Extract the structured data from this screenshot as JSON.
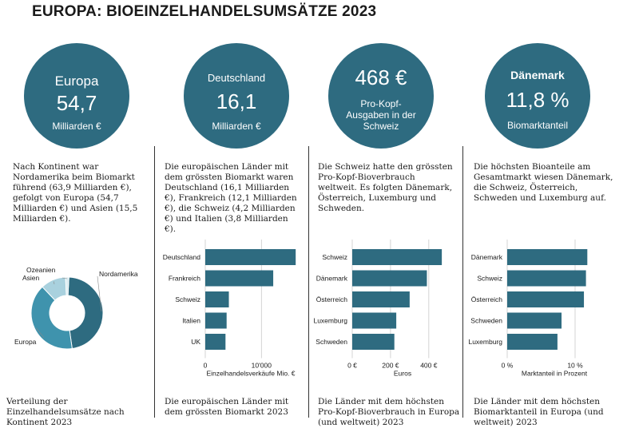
{
  "title": "EUROPA: BIOEINZELHANDELSUMSÄTZE 2023",
  "colors": {
    "circle": "#2e6b80",
    "bar": "#2e6b80",
    "donut_dark": "#2e6b80",
    "donut_mid": "#3f93ad",
    "donut_light": "#a9d1de",
    "donut_pale": "#d8ebf1"
  },
  "panels": [
    {
      "circle": {
        "line1": "Europa",
        "line2": "54,7",
        "line3": "Milliarden €"
      },
      "description": "Nach Kontinent war Nordamerika beim Biomarkt führend (63,9 Milliarden €), gefolgt von Europa (54,7 Milliarden €) und Asien (15,5 Milliarden €).",
      "caption": "Verteilung der Einzelhandelsumsätze nach Kontinent 2023"
    },
    {
      "circle": {
        "line1": "Deutschland",
        "line2": "16,1",
        "line3": "Milliarden €"
      },
      "description": "Die europäischen Länder mit dem grössten Biomarkt waren Deutschland (16,1 Milliarden €), Frankreich (12,1 Milliarden €), die Schweiz (4,2 Milliarden €) und Italien (3,8 Milliarden €).",
      "caption": "Die europäischen Länder mit dem grössten Biomarkt 2023"
    },
    {
      "circle": {
        "line1": "468 €",
        "line2": "Pro-Kopf-",
        "line3": "Ausgaben in der",
        "line4": "Schweiz"
      },
      "description": "Die Schweiz hatte den grössten Pro-Kopf-Bioverbrauch weltweit. Es folgten Dänemark, Österreich, Luxemburg und Schweden.",
      "caption": "Die Länder mit dem höchsten Pro-Kopf-Bioverbrauch in Europa (und weltweit) 2023"
    },
    {
      "circle": {
        "line1": "Dänemark",
        "line2": "11,8 %",
        "line3": "Biomarktanteil"
      },
      "description": "Die höchsten Bioanteile am Gesamtmarkt wiesen Dänemark, die Schweiz, Österreich, Schweden und Luxemburg auf.",
      "caption": "Die Länder mit dem höchsten Biomarktanteil in Europa (und weltweit) 2023"
    }
  ],
  "chart_data": [
    {
      "type": "pie",
      "donut": true,
      "categories": [
        "Nordamerika",
        "Europa",
        "Asien",
        "Ozeanien"
      ],
      "values": [
        63.9,
        54.7,
        15.5,
        2.0
      ]
    },
    {
      "type": "bar",
      "orientation": "horizontal",
      "categories": [
        "Deutschland",
        "Frankreich",
        "Schweiz",
        "Italien",
        "UK"
      ],
      "values": [
        16100,
        12100,
        4200,
        3800,
        3600
      ],
      "xlabel": "Einzelhandelsverkäufe Mio. €",
      "xticks": [
        0,
        10000
      ],
      "xtick_labels": [
        "0",
        "10'000"
      ],
      "xlim": [
        0,
        16500
      ]
    },
    {
      "type": "bar",
      "orientation": "horizontal",
      "categories": [
        "Schweiz",
        "Dänemark",
        "Österreich",
        "Luxemburg",
        "Schweden"
      ],
      "values": [
        468,
        390,
        300,
        230,
        220
      ],
      "xlabel": "Euros",
      "xticks": [
        0,
        200,
        400
      ],
      "xtick_labels": [
        "0 €",
        "200 €",
        "400 €"
      ],
      "xlim": [
        0,
        480
      ]
    },
    {
      "type": "bar",
      "orientation": "horizontal",
      "categories": [
        "Dänemark",
        "Schweiz",
        "Österreich",
        "Schweden",
        "Luxemburg"
      ],
      "values": [
        11.8,
        11.6,
        11.3,
        8.0,
        7.4
      ],
      "xlabel": "Marktanteil in Prozent",
      "xticks": [
        0,
        10
      ],
      "xtick_labels": [
        "0 %",
        "10 %"
      ],
      "xlim": [
        0,
        12
      ]
    }
  ]
}
